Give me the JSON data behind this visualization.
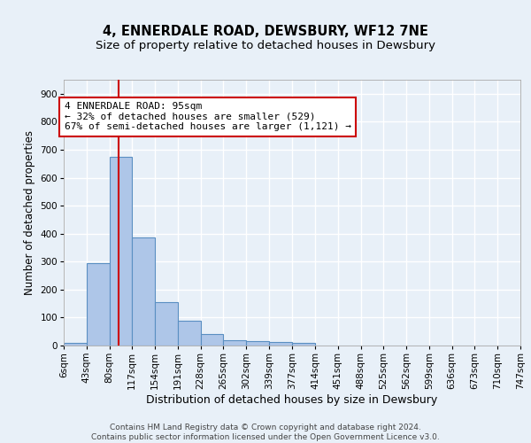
{
  "title1": "4, ENNERDALE ROAD, DEWSBURY, WF12 7NE",
  "title2": "Size of property relative to detached houses in Dewsbury",
  "xlabel": "Distribution of detached houses by size in Dewsbury",
  "ylabel": "Number of detached properties",
  "bin_edges": [
    6,
    43,
    80,
    117,
    154,
    191,
    228,
    265,
    302,
    339,
    377,
    414,
    451,
    488,
    525,
    562,
    599,
    636,
    673,
    710,
    747
  ],
  "bar_heights": [
    10,
    295,
    675,
    385,
    155,
    90,
    42,
    18,
    17,
    12,
    10,
    0,
    0,
    0,
    0,
    0,
    0,
    0,
    0,
    0
  ],
  "bar_color": "#aec6e8",
  "bar_edgecolor": "#5a8fc2",
  "bar_linewidth": 0.8,
  "vline_x": 95,
  "vline_color": "#cc0000",
  "vline_linewidth": 1.5,
  "annotation_text": "4 ENNERDALE ROAD: 95sqm\n← 32% of detached houses are smaller (529)\n67% of semi-detached houses are larger (1,121) →",
  "annotation_box_color": "white",
  "annotation_box_edgecolor": "#cc0000",
  "ylim": [
    0,
    950
  ],
  "yticks": [
    0,
    100,
    200,
    300,
    400,
    500,
    600,
    700,
    800,
    900
  ],
  "bg_color": "#e8f0f8",
  "grid_color": "white",
  "footer_text": "Contains HM Land Registry data © Crown copyright and database right 2024.\nContains public sector information licensed under the Open Government Licence v3.0.",
  "title1_fontsize": 10.5,
  "title2_fontsize": 9.5,
  "xlabel_fontsize": 9,
  "ylabel_fontsize": 8.5,
  "tick_fontsize": 7.5,
  "annotation_fontsize": 8,
  "footer_fontsize": 6.5
}
